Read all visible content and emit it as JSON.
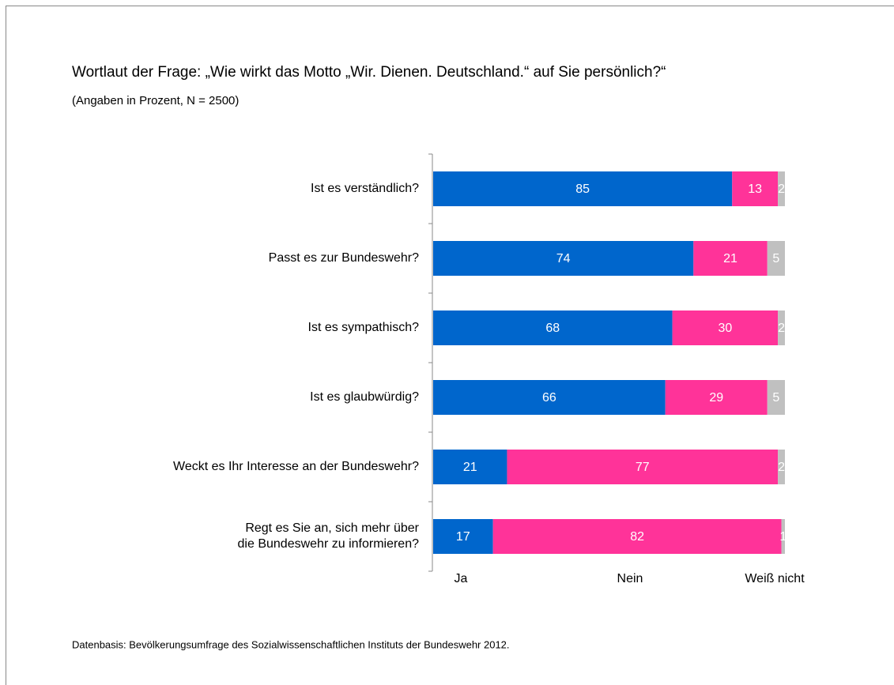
{
  "chart_data": {
    "type": "stacked-barh",
    "title": "Wortlaut der Frage: „Wie wirkt das Motto „Wir. Dienen. Deutschland.“ auf Sie persönlich?“",
    "subtitle": "(Angaben in Prozent, N = 2500)",
    "footnote": "Datenbasis: Bevölkerungsumfrage des Sozialwissenschaftlichen Instituts der Bundeswehr 2012.",
    "categories": [
      "Ist es verständlich?",
      "Passt es zur Bundeswehr?",
      "Ist es sympathisch?",
      "Ist es glaubwürdig?",
      "Weckt es Ihr Interesse an der Bundeswehr?",
      "Regt es Sie an, sich mehr über\ndie Bundeswehr zu informieren?"
    ],
    "series": [
      {
        "name": "Ja",
        "color": "#0066cc",
        "values": [
          85,
          74,
          68,
          66,
          21,
          17
        ]
      },
      {
        "name": "Nein",
        "color": "#ff3399",
        "values": [
          13,
          21,
          30,
          29,
          77,
          82
        ]
      },
      {
        "name": "Weiß nicht",
        "color": "#c0c0c0",
        "values": [
          2,
          5,
          2,
          5,
          2,
          1
        ]
      }
    ],
    "xlim": [
      0,
      100
    ]
  }
}
